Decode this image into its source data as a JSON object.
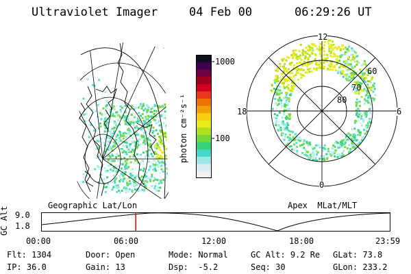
{
  "header": {
    "title": "Ultraviolet Imager",
    "date": "04 Feb 00",
    "time": "06:29:26 UT"
  },
  "colorbar": {
    "unit": "photon cm⁻²s⁻¹",
    "tick_1000": "1000",
    "tick_100": "100",
    "colors": [
      "#f0f0f0",
      "#d8eef0",
      "#9ce8e8",
      "#44d8c8",
      "#38d078",
      "#70d838",
      "#b0e020",
      "#e8ec18",
      "#f8d010",
      "#f0a008",
      "#f07008",
      "#e83818",
      "#d00020",
      "#a00020",
      "#700040",
      "#400050",
      "#101020"
    ]
  },
  "left_panel": {
    "label": "Geographic Lat/Lon"
  },
  "right_panel": {
    "label": "Apex  MLat/MLT",
    "mlt_labels": {
      "top": "12",
      "bottom": "0",
      "left": "18",
      "right": "6"
    },
    "lat_labels": [
      "60",
      "70",
      "80"
    ]
  },
  "timeline": {
    "axis_label": "GC Alt",
    "y_ticks": [
      "9.0",
      "1.8"
    ],
    "x_ticks": [
      "00:00",
      "06:00",
      "12:00",
      "18:00",
      "23:59"
    ],
    "current_fraction": 0.27,
    "marker_color": "#e00000"
  },
  "info": {
    "flt": {
      "label": "Flt:",
      "value": "1304"
    },
    "ip": {
      "label": "IP:",
      "value": "36.0"
    },
    "door": {
      "label": "Door:",
      "value": "Open"
    },
    "gain": {
      "label": "Gain:",
      "value": "13"
    },
    "mode": {
      "label": "Mode:",
      "value": "Normal"
    },
    "dsp": {
      "label": "Dsp:",
      "value": "-5.2"
    },
    "gcalt": {
      "label": "GC Alt:",
      "value": "9.2 Re"
    },
    "seq": {
      "label": "Seq:",
      "value": "30"
    },
    "glat": {
      "label": "GLat:",
      "value": "73.8"
    },
    "glon": {
      "label": "GLon:",
      "value": "233.2"
    }
  }
}
